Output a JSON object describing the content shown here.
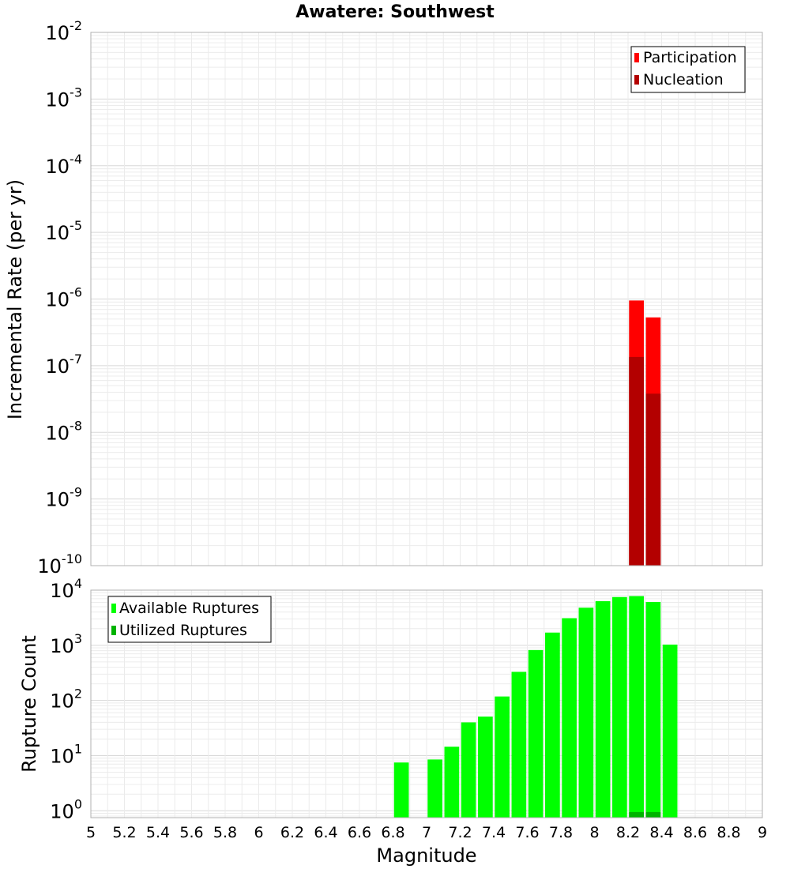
{
  "chart_data": [
    {
      "type": "bar",
      "title": "Awatere: Southwest",
      "xlabel": "",
      "ylabel": "Incremental Rate (per yr)",
      "y_scale": "log",
      "xlim": [
        5,
        9
      ],
      "ylim": [
        1e-10,
        0.01
      ],
      "y_ticks": [
        {
          "base": "10",
          "exp": "-10",
          "value": 1e-10
        },
        {
          "base": "10",
          "exp": "-9",
          "value": 1e-09
        },
        {
          "base": "10",
          "exp": "-8",
          "value": 1e-08
        },
        {
          "base": "10",
          "exp": "-7",
          "value": 1e-07
        },
        {
          "base": "10",
          "exp": "-6",
          "value": 1e-06
        },
        {
          "base": "10",
          "exp": "-5",
          "value": 1e-05
        },
        {
          "base": "10",
          "exp": "-4",
          "value": 0.0001
        },
        {
          "base": "10",
          "exp": "-3",
          "value": 0.001
        },
        {
          "base": "10",
          "exp": "-2",
          "value": 0.01
        }
      ],
      "grid": true,
      "legend_position": "top-right",
      "series": [
        {
          "name": "Participation",
          "color": "#ff0000",
          "x": [
            8.25,
            8.35
          ],
          "values": [
            9.5e-07,
            5.3e-07
          ]
        },
        {
          "name": "Nucleation",
          "color": "#b30000",
          "x": [
            8.25,
            8.35
          ],
          "values": [
            1.35e-07,
            3.8e-08
          ]
        }
      ]
    },
    {
      "type": "bar",
      "title": "",
      "xlabel": "Magnitude",
      "ylabel": "Rupture Count",
      "y_scale": "log",
      "xlim": [
        5,
        9
      ],
      "ylim": [
        0.75,
        10000
      ],
      "x_ticks": [
        "5",
        "5.2",
        "5.4",
        "5.6",
        "5.8",
        "6",
        "6.2",
        "6.4",
        "6.6",
        "6.8",
        "7",
        "7.2",
        "7.4",
        "7.6",
        "7.8",
        "8",
        "8.2",
        "8.4",
        "8.6",
        "8.8",
        "9"
      ],
      "y_ticks": [
        {
          "base": "10",
          "exp": "0",
          "value": 1
        },
        {
          "base": "10",
          "exp": "1",
          "value": 10
        },
        {
          "base": "10",
          "exp": "2",
          "value": 100
        },
        {
          "base": "10",
          "exp": "3",
          "value": 1000
        },
        {
          "base": "10",
          "exp": "4",
          "value": 10000
        }
      ],
      "grid": true,
      "legend_position": "top-left",
      "series": [
        {
          "name": "Available Ruptures",
          "color": "#00ff00",
          "x": [
            6.85,
            7.05,
            7.15,
            7.25,
            7.35,
            7.45,
            7.55,
            7.65,
            7.75,
            7.85,
            7.95,
            8.05,
            8.15,
            8.25,
            8.35,
            8.45
          ],
          "values": [
            7.5,
            8.5,
            14.5,
            40,
            51,
            118,
            330,
            820,
            1700,
            3100,
            4800,
            6300,
            7500,
            7800,
            6100,
            1030
          ]
        },
        {
          "name": "Utilized Ruptures",
          "color": "#00b300",
          "x": [
            8.25,
            8.35
          ],
          "values": [
            1,
            1
          ]
        }
      ]
    }
  ]
}
